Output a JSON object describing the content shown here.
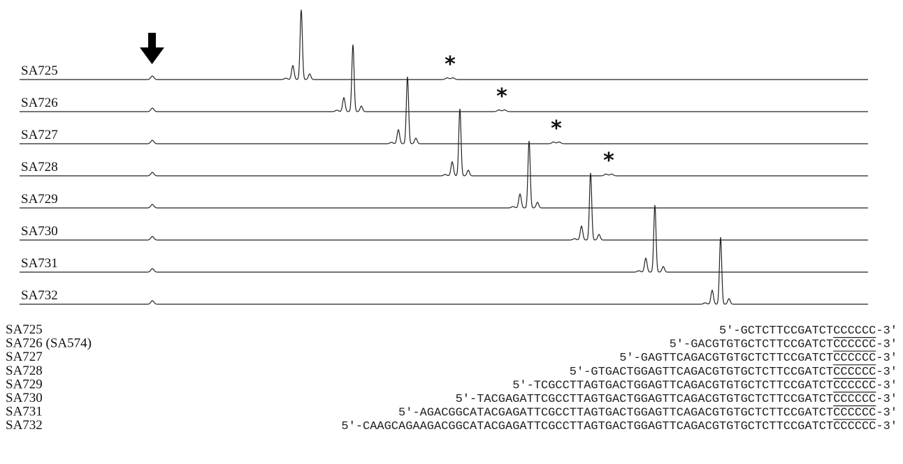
{
  "traces": [
    {
      "label": "SA725",
      "peak": 431,
      "side": 419,
      "star": true
    },
    {
      "label": "SA726",
      "peak": 505,
      "side": 492,
      "star": true
    },
    {
      "label": "SA727",
      "peak": 583,
      "side": 570,
      "star": true
    },
    {
      "label": "SA728",
      "peak": 658,
      "side": 647,
      "star": true
    },
    {
      "label": "SA729",
      "peak": 757,
      "side": 744,
      "star": false
    },
    {
      "label": "SA730",
      "peak": 845,
      "side": 832,
      "star": false
    },
    {
      "label": "SA731",
      "peak": 937,
      "side": 924,
      "star": false
    },
    {
      "label": "SA732",
      "peak": 1031,
      "side": 1019,
      "star": false
    }
  ],
  "marker_symbol": "*",
  "sequences": [
    {
      "label": "SA725",
      "prefix": "5'-",
      "body": "GCTCTTCCGATCT",
      "tail": "CCCCCC",
      "suffix": "-3'",
      "overline": false
    },
    {
      "label": "SA726 (SA574)",
      "prefix": "5'-",
      "body": "GACGTGTGCTCTTCCGATCT",
      "tail": "CCCCCC",
      "suffix": "-3'",
      "overline": true
    },
    {
      "label": "SA727",
      "prefix": "5'-",
      "body": "GAGTTCAGACGTGTGCTCTTCCGATCT",
      "tail": "CCCCCC",
      "suffix": "-3'",
      "overline": true
    },
    {
      "label": "SA728",
      "prefix": "5'-",
      "body": "GTGACTGGAGTTCAGACGTGTGCTCTTCCGATCT",
      "tail": "CCCCCC",
      "suffix": "-3'",
      "overline": true
    },
    {
      "label": "SA729",
      "prefix": "5'-",
      "body": "TCGCCTTAGTGACTGGAGTTCAGACGTGTGCTCTTCCGATCT",
      "tail": "CCCCCC",
      "suffix": "-3'",
      "overline": true
    },
    {
      "label": "SA730",
      "prefix": "5'-",
      "body": "TACGAGATTCGCCTTAGTGACTGGAGTTCAGACGTGTGCTCTTCCGATCT",
      "tail": "CCCCCC",
      "suffix": "-3'",
      "overline": true
    },
    {
      "label": "SA731",
      "prefix": "5'-",
      "body": "AGACGGCATACGAGATTCGCCTTAGTGACTGGAGTTCAGACGTGTGCTCTTCCGATCT",
      "tail": "CCCCCC",
      "suffix": "-3'",
      "overline": true
    },
    {
      "label": "SA732",
      "prefix": "5'-",
      "body": "CAAGCAGAAGACGGCATACGAGATTCGCCTTAGTGACTGGAGTTCAGACGTGTGCTCTTCCGATCT",
      "tail": "CCCCCC",
      "suffix": "-3'",
      "overline": true
    }
  ]
}
